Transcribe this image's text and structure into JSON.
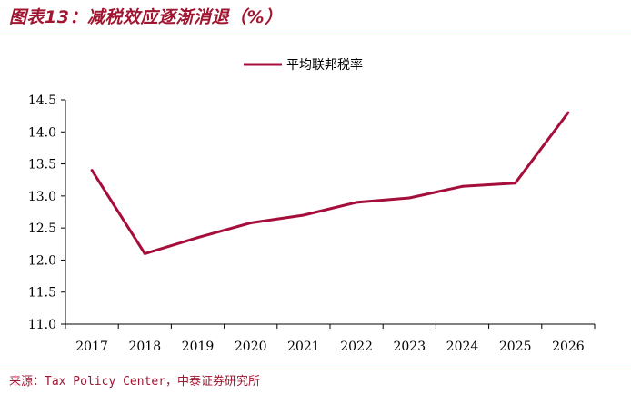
{
  "header": {
    "title": "图表13：减税效应逐渐消退（%）"
  },
  "footer": {
    "source": "来源：Tax Policy Center，中泰证券研究所"
  },
  "colors": {
    "accent": "#A01530",
    "series": "#A50D3A",
    "axis": "#000000"
  },
  "chart_data": {
    "type": "line",
    "title": "图表13：减税效应逐渐消退（%）",
    "xlabel": "",
    "ylabel": "",
    "categories": [
      "2017",
      "2018",
      "2019",
      "2020",
      "2021",
      "2022",
      "2023",
      "2024",
      "2025",
      "2026"
    ],
    "series": [
      {
        "name": "平均联邦税率",
        "values": [
          13.4,
          12.1,
          12.35,
          12.58,
          12.7,
          12.9,
          12.97,
          13.15,
          13.2,
          14.3
        ]
      }
    ],
    "ylim": [
      11.0,
      14.5
    ],
    "yticks": [
      "11.0",
      "11.5",
      "12.0",
      "12.5",
      "13.0",
      "13.5",
      "14.0",
      "14.5"
    ],
    "grid": false,
    "legend_position": "top-center"
  }
}
